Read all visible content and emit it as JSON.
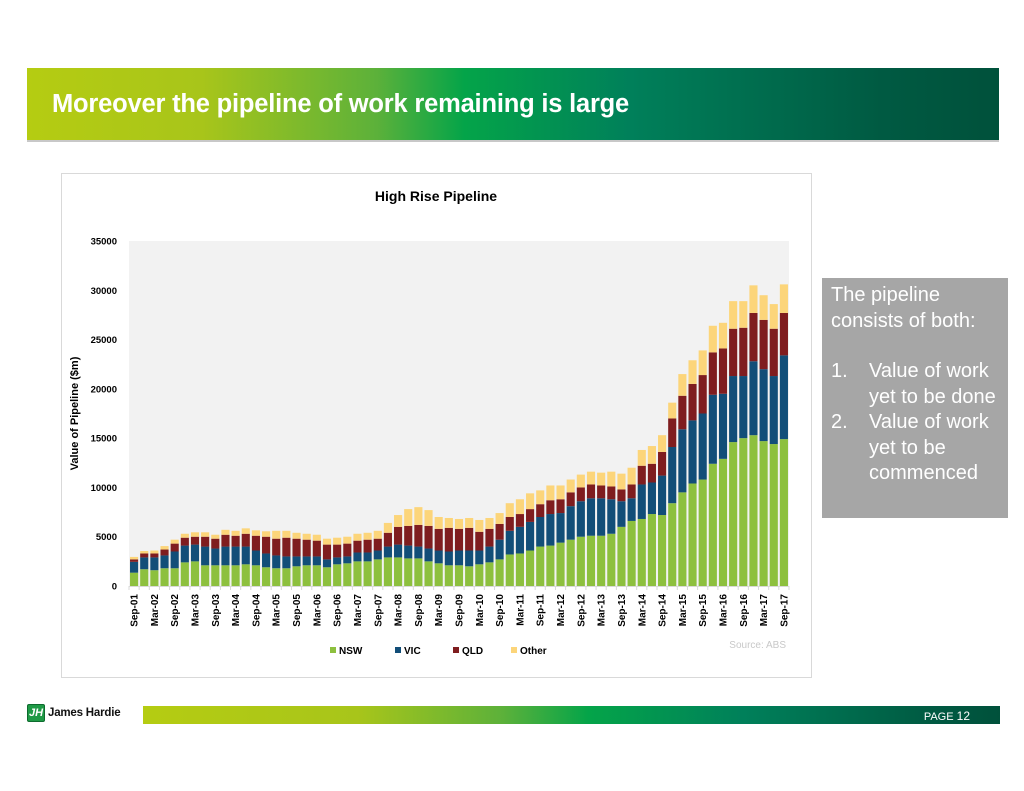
{
  "header": {
    "title": "Moreover the pipeline of work remaining is large"
  },
  "side_note": {
    "intro": "The pipeline consists of both:",
    "items": [
      {
        "num": "1.",
        "text": "Value of work yet to be done"
      },
      {
        "num": "2.",
        "text": "Value of work yet to be commenced"
      }
    ]
  },
  "footer": {
    "logo_text": "James Hardie",
    "logo_glyph": "JH",
    "page_label": "PAGE",
    "page_number": "12"
  },
  "colors": {
    "NSW": "#8dc03e",
    "VIC": "#124e78",
    "QLD": "#7f1d1f",
    "Other": "#fcd57a",
    "plot_bg": "#f2f2f2"
  },
  "chart_data": {
    "type": "bar",
    "stacked": true,
    "title": "High Rise Pipeline",
    "xlabel": "",
    "ylabel": "Value of Pipeline ($m)",
    "ylim": [
      0,
      35000
    ],
    "yticks": [
      0,
      5000,
      10000,
      15000,
      20000,
      25000,
      30000,
      35000
    ],
    "grid": false,
    "legend": "bottom-center",
    "source": "Source: ABS",
    "x_tick_labels": [
      "Sep-01",
      "Mar-02",
      "Sep-02",
      "Mar-03",
      "Sep-03",
      "Mar-04",
      "Sep-04",
      "Mar-05",
      "Sep-05",
      "Mar-06",
      "Sep-06",
      "Mar-07",
      "Sep-07",
      "Mar-08",
      "Sep-08",
      "Mar-09",
      "Sep-09",
      "Mar-10",
      "Sep-10",
      "Mar-11",
      "Sep-11",
      "Mar-12",
      "Sep-12",
      "Mar-13",
      "Sep-13",
      "Mar-14",
      "Sep-14",
      "Mar-15",
      "Sep-15",
      "Mar-16",
      "Sep-16",
      "Mar-17",
      "Sep-17"
    ],
    "categories": [
      "Sep-01",
      "Dec-01",
      "Mar-02",
      "Jun-02",
      "Sep-02",
      "Dec-02",
      "Mar-03",
      "Jun-03",
      "Sep-03",
      "Dec-03",
      "Mar-04",
      "Jun-04",
      "Sep-04",
      "Dec-04",
      "Mar-05",
      "Jun-05",
      "Sep-05",
      "Dec-05",
      "Mar-06",
      "Jun-06",
      "Sep-06",
      "Dec-06",
      "Mar-07",
      "Jun-07",
      "Sep-07",
      "Dec-07",
      "Mar-08",
      "Jun-08",
      "Sep-08",
      "Dec-08",
      "Mar-09",
      "Jun-09",
      "Sep-09",
      "Dec-09",
      "Mar-10",
      "Jun-10",
      "Sep-10",
      "Dec-10",
      "Mar-11",
      "Jun-11",
      "Sep-11",
      "Dec-11",
      "Mar-12",
      "Jun-12",
      "Sep-12",
      "Dec-12",
      "Mar-13",
      "Jun-13",
      "Sep-13",
      "Dec-13",
      "Mar-14",
      "Jun-14",
      "Sep-14",
      "Dec-14",
      "Mar-15",
      "Jun-15",
      "Sep-15",
      "Dec-15",
      "Mar-16",
      "Jun-16",
      "Sep-16",
      "Dec-16",
      "Mar-17",
      "Jun-17",
      "Sep-17"
    ],
    "series": [
      {
        "name": "NSW",
        "values": [
          1350,
          1700,
          1600,
          1800,
          1800,
          2400,
          2500,
          2100,
          2100,
          2100,
          2100,
          2200,
          2100,
          1900,
          1800,
          1800,
          2000,
          2100,
          2100,
          1900,
          2200,
          2300,
          2500,
          2500,
          2700,
          2900,
          2900,
          2800,
          2800,
          2500,
          2300,
          2100,
          2100,
          2000,
          2200,
          2400,
          2700,
          3200,
          3300,
          3600,
          4000,
          4100,
          4400,
          4700,
          5000,
          5100,
          5100,
          5300,
          6000,
          6600,
          6800,
          7300,
          7200,
          8400,
          9500,
          10400,
          10800,
          12400,
          12900,
          14600,
          15000,
          15300,
          14700,
          14400,
          14900
        ]
      },
      {
        "name": "VIC",
        "values": [
          1100,
          1200,
          1300,
          1300,
          1700,
          1700,
          1700,
          1900,
          1700,
          1900,
          1900,
          1800,
          1500,
          1400,
          1300,
          1200,
          1000,
          900,
          900,
          800,
          700,
          700,
          900,
          900,
          900,
          1100,
          1300,
          1300,
          1200,
          1300,
          1300,
          1400,
          1500,
          1600,
          1400,
          1600,
          2000,
          2400,
          2700,
          2900,
          3000,
          3200,
          3000,
          3400,
          3600,
          3800,
          3800,
          3500,
          2600,
          2300,
          3500,
          3200,
          4000,
          5700,
          6400,
          6400,
          6700,
          7000,
          6600,
          6700,
          6300,
          7500,
          7300,
          6900,
          8500
        ]
      },
      {
        "name": "QLD",
        "values": [
          250,
          400,
          400,
          600,
          800,
          800,
          800,
          1000,
          1000,
          1200,
          1100,
          1300,
          1500,
          1700,
          1700,
          1900,
          1800,
          1700,
          1600,
          1500,
          1300,
          1300,
          1200,
          1300,
          1200,
          1400,
          1800,
          2000,
          2200,
          2300,
          2200,
          2400,
          2200,
          2300,
          1900,
          1800,
          1600,
          1400,
          1300,
          1300,
          1300,
          1400,
          1400,
          1400,
          1400,
          1400,
          1300,
          1300,
          1200,
          1400,
          1900,
          1900,
          2400,
          2900,
          3400,
          3700,
          3900,
          4300,
          4600,
          4800,
          4900,
          4900,
          5000,
          4800,
          4300
        ]
      },
      {
        "name": "Other",
        "values": [
          250,
          250,
          300,
          350,
          400,
          400,
          450,
          450,
          400,
          500,
          500,
          550,
          550,
          550,
          800,
          700,
          600,
          600,
          600,
          600,
          700,
          700,
          700,
          700,
          800,
          1000,
          1200,
          1700,
          1800,
          1600,
          1200,
          1000,
          1000,
          1000,
          1200,
          1100,
          1100,
          1400,
          1500,
          1600,
          1400,
          1500,
          1400,
          1300,
          1300,
          1300,
          1300,
          1500,
          1600,
          1700,
          1600,
          1800,
          1700,
          1600,
          2200,
          2400,
          2500,
          2700,
          2600,
          2800,
          2700,
          2800,
          2500,
          2500,
          2900
        ]
      }
    ]
  }
}
